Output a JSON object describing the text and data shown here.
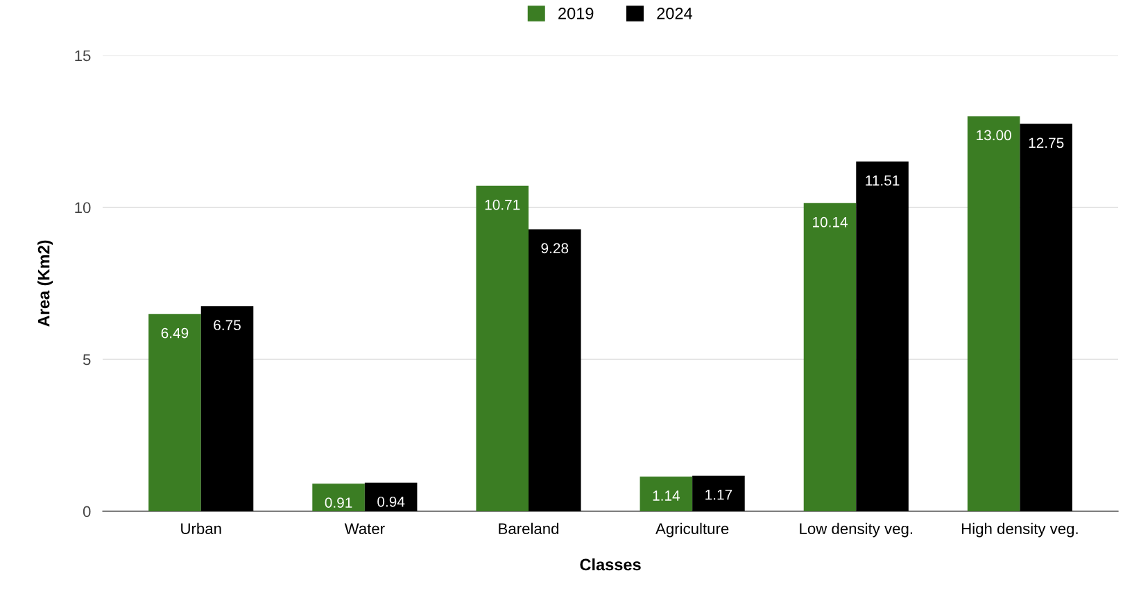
{
  "chart_data": {
    "type": "bar",
    "xlabel": "Classes",
    "ylabel": "Area (Km2)",
    "categories": [
      "Urban",
      "Water",
      "Bareland",
      "Agriculture",
      "Low density veg.",
      "High density veg."
    ],
    "series": [
      {
        "name": "2019",
        "color": "#3b7d23",
        "values": [
          6.49,
          0.91,
          10.71,
          1.14,
          10.14,
          13.0
        ],
        "value_labels": [
          "6.49",
          "0.91",
          "10.71",
          "1.14",
          "10.14",
          "13.00"
        ]
      },
      {
        "name": "2024",
        "color": "#000000",
        "values": [
          6.75,
          0.94,
          9.28,
          1.17,
          11.51,
          12.75
        ],
        "value_labels": [
          "6.75",
          "0.94",
          "9.28",
          "1.17",
          "11.51",
          "12.75"
        ]
      }
    ],
    "ylim": [
      0,
      15
    ],
    "yticks": [
      0,
      5,
      10,
      15
    ],
    "grid": "y",
    "legend": "top"
  }
}
